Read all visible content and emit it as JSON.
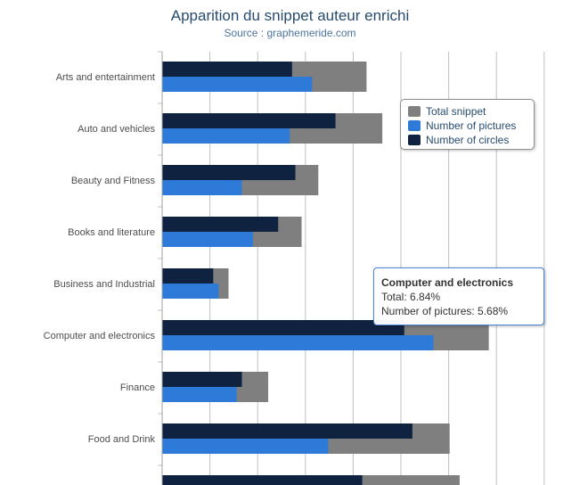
{
  "chart": {
    "title": "Apparition du snippet auteur enrichi",
    "subtitle": "Source : graphemeride.com"
  },
  "colors": {
    "total": "#7f7f7f",
    "pictures": "#2e7ad8",
    "circles": "#0f2340",
    "grid": "#c0c0c0",
    "label": "#4d4d4d"
  },
  "legend": {
    "items": [
      {
        "name": "Total snippet",
        "color": "#7f7f7f"
      },
      {
        "name": "Number of pictures",
        "color": "#2e7ad8"
      },
      {
        "name": "Number of circles",
        "color": "#0f2340"
      }
    ]
  },
  "tooltip": {
    "title": "Computer and electronics",
    "line1": "Total: 6.84%",
    "line2": "Number of pictures: 5.68%"
  },
  "chart_data": {
    "type": "bar",
    "orientation": "horizontal",
    "categories": [
      "Arts and entertainment",
      "Auto and vehicles",
      "Beauty and Fitness",
      "Books and literature",
      "Business and Industrial",
      "Computer and electronics",
      "Finance",
      "Food and Drink",
      ""
    ],
    "xlim": [
      0,
      8
    ],
    "grid": true,
    "legend_position": "top-right",
    "series": [
      {
        "name": "Total snippet",
        "values": [
          4.28,
          4.61,
          3.27,
          2.92,
          1.39,
          6.84,
          2.22,
          6.02,
          6.23
        ]
      },
      {
        "name": "Number of pictures",
        "values": [
          3.14,
          2.67,
          1.67,
          1.9,
          1.18,
          5.68,
          1.56,
          3.48,
          null
        ]
      },
      {
        "name": "Number of circles",
        "values": [
          2.72,
          3.63,
          2.79,
          2.43,
          1.07,
          5.07,
          1.67,
          5.24,
          4.19
        ]
      }
    ]
  }
}
